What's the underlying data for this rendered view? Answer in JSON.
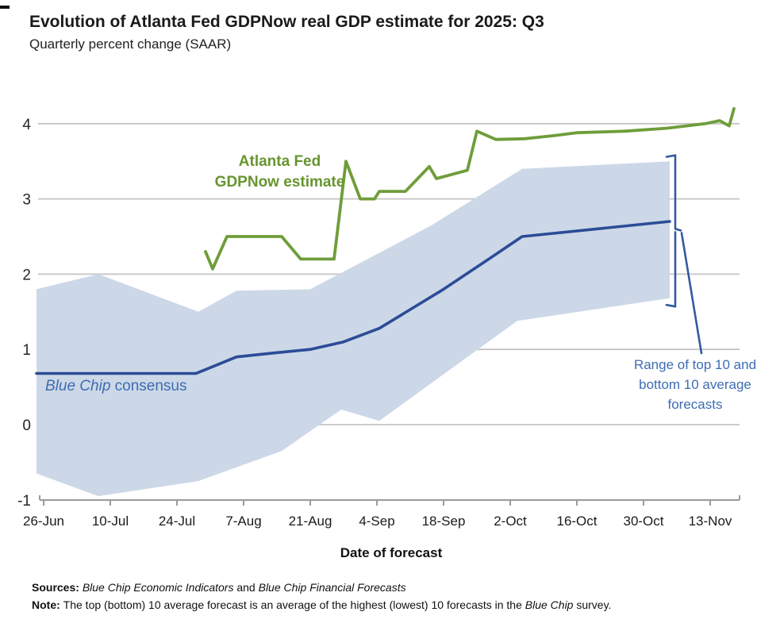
{
  "header": {
    "title": "Evolution of Atlanta Fed GDPNow real GDP estimate for 2025: Q3",
    "subtitle": "Quarterly percent change (SAAR)"
  },
  "colors": {
    "green_line": "#6f9d3a",
    "green_label": "#67952f",
    "blue_line": "#2b4c97",
    "band_fill": "#ccd8e7",
    "blue_text": "#3e6cb3",
    "bracket": "#335a9e",
    "grid": "#c4c4c4",
    "axis": "#9b9b9b",
    "tick_label": "#1b1b1b"
  },
  "chart_data": {
    "type": "line",
    "title": "Evolution of Atlanta Fed GDPNow real GDP estimate for 2025: Q3",
    "subtitle": "Quarterly percent change (SAAR)",
    "x_axis": {
      "label": "Date of forecast",
      "tick_labels": [
        "26-Jun",
        "10-Jul",
        "24-Jul",
        "7-Aug",
        "21-Aug",
        "4-Sep",
        "18-Sep",
        "2-Oct",
        "16-Oct",
        "30-Oct",
        "13-Nov"
      ],
      "tick_days": [
        0,
        14,
        28,
        42,
        56,
        70,
        84,
        98,
        112,
        126,
        140
      ],
      "unit": "days since 26-Jun"
    },
    "y_axis": {
      "tick_values": [
        -1,
        0,
        1,
        2,
        3,
        4
      ],
      "tick_labels": [
        "-1",
        "0",
        "1",
        "2",
        "3",
        "4"
      ],
      "range": [
        -1,
        4.4
      ],
      "grid": true
    },
    "series": [
      {
        "name": "Atlanta Fed GDPNow estimate",
        "type": "line",
        "points": [
          [
            34,
            2.3
          ],
          [
            35.5,
            2.07
          ],
          [
            38.5,
            2.5
          ],
          [
            50,
            2.5
          ],
          [
            54,
            2.2
          ],
          [
            61,
            2.2
          ],
          [
            63.5,
            3.5
          ],
          [
            66.5,
            3.0
          ],
          [
            69.5,
            3.0
          ],
          [
            70.5,
            3.1
          ],
          [
            76,
            3.1
          ],
          [
            81,
            3.43
          ],
          [
            82.5,
            3.27
          ],
          [
            89,
            3.38
          ],
          [
            91,
            3.9
          ],
          [
            95,
            3.79
          ],
          [
            101,
            3.8
          ],
          [
            107,
            3.84
          ],
          [
            112,
            3.88
          ],
          [
            122,
            3.9
          ],
          [
            131,
            3.94
          ],
          [
            139,
            4.0
          ],
          [
            142,
            4.04
          ],
          [
            144,
            3.97
          ],
          [
            145,
            4.2
          ]
        ]
      },
      {
        "name": "Blue Chip consensus",
        "type": "line",
        "points": [
          [
            -1.5,
            0.68
          ],
          [
            32,
            0.68
          ],
          [
            40.5,
            0.9
          ],
          [
            48,
            0.95
          ],
          [
            56,
            1.0
          ],
          [
            63,
            1.1
          ],
          [
            70.5,
            1.28
          ],
          [
            84,
            1.8
          ],
          [
            93.5,
            2.2
          ],
          [
            100.5,
            2.5
          ],
          [
            131.5,
            2.7
          ]
        ]
      }
    ],
    "band": {
      "name": "Range of top 10 and bottom 10 average forecasts",
      "top": [
        [
          -1.5,
          1.8
        ],
        [
          11.5,
          2.0
        ],
        [
          32.5,
          1.5
        ],
        [
          40.5,
          1.78
        ],
        [
          56,
          1.8
        ],
        [
          81.5,
          2.65
        ],
        [
          100.5,
          3.4
        ],
        [
          131.5,
          3.5
        ]
      ],
      "bottom": [
        [
          -1.5,
          -0.65
        ],
        [
          11.5,
          -0.95
        ],
        [
          32.5,
          -0.75
        ],
        [
          50,
          -0.35
        ],
        [
          62.5,
          0.2
        ],
        [
          70.5,
          0.05
        ],
        [
          99.5,
          1.38
        ],
        [
          131.5,
          1.68
        ]
      ]
    },
    "annotations": {
      "gdpnow_label_lines": [
        "Atlanta Fed",
        "GDPNow estimate"
      ],
      "range_label_lines": [
        "Range of top 10 and",
        "bottom 10 average",
        "forecasts"
      ],
      "bracket": {
        "top_value": 3.58,
        "bottom_value": 1.57,
        "mid_value": 2.58
      }
    }
  },
  "labels": {
    "consensus_segments": [
      {
        "t": "Blue Chip",
        "i": true
      },
      {
        "t": " consensus"
      }
    ]
  },
  "footer": {
    "sources_segments": [
      {
        "t": "Sources: ",
        "b": true
      },
      {
        "t": "Blue Chip Economic Indicators",
        "i": true
      },
      {
        "t": " and "
      },
      {
        "t": "Blue Chip Financial Forecasts",
        "i": true
      }
    ],
    "note_segments": [
      {
        "t": "Note: ",
        "b": true
      },
      {
        "t": "The top (bottom) 10 average forecast is an average of the highest (lowest) 10 forecasts in the "
      },
      {
        "t": "Blue Chip",
        "i": true
      },
      {
        "t": " survey."
      }
    ]
  }
}
